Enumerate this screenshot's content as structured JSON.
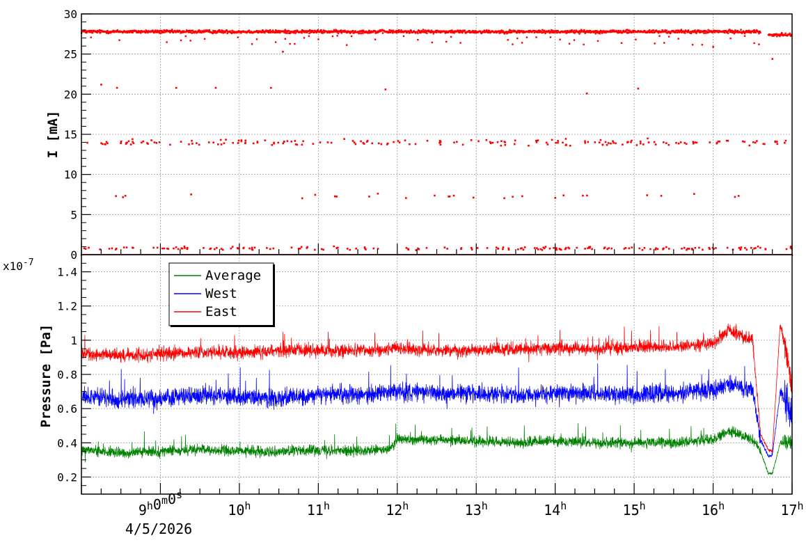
{
  "chart_data": [
    {
      "type": "scatter",
      "ylabel": "I [mA]",
      "ylim": [
        0,
        30
      ],
      "yticks": [
        "0",
        "5",
        "10",
        "15",
        "20",
        "25",
        "30"
      ],
      "grid": true,
      "marker_color": "#ff0000",
      "series": [
        {
          "bands": [
            {
              "level": 27.8,
              "spread": 0.3,
              "range": [
                8.0,
                16.6
              ]
            },
            {
              "level": 27.4,
              "spread": 0.3,
              "range": [
                16.7,
                17.0
              ]
            },
            {
              "level": 0.0,
              "spread": 0.0,
              "range": [
                8.0,
                17.0
              ]
            }
          ],
          "scattered": [
            {
              "approx_level": 14.0,
              "range": [
                8.0,
                17.0
              ]
            },
            {
              "approx_level": 0.8,
              "range": [
                8.0,
                17.0
              ]
            },
            {
              "approx_level": 7.3,
              "range": [
                8.3,
                16.5
              ]
            }
          ],
          "outliers": [
            [
              8.25,
              21.2
            ],
            [
              8.45,
              20.8
            ],
            [
              9.2,
              20.8
            ],
            [
              9.7,
              20.8
            ],
            [
              10.4,
              20.8
            ],
            [
              11.85,
              20.6
            ],
            [
              14.4,
              20.1
            ],
            [
              15.05,
              20.7
            ],
            [
              16.75,
              24.4
            ],
            [
              16.0,
              25.9
            ],
            [
              10.55,
              25.3
            ]
          ]
        }
      ]
    },
    {
      "type": "line",
      "ylabel": "Pressure [Pa]",
      "multiplier": "x10",
      "multiplier_exp": "-7",
      "ylim": [
        0.1,
        1.5
      ],
      "yticks": [
        "0.2",
        "0.4",
        "0.6",
        "0.8",
        "1",
        "1.2",
        "1.4"
      ],
      "xlim": [
        8.0,
        17.0
      ],
      "xticks": [
        {
          "x": 9,
          "h": "9",
          "m": "0",
          "s": "0"
        },
        {
          "x": 10,
          "h": "10"
        },
        {
          "x": 11,
          "h": "11"
        },
        {
          "x": 12,
          "h": "12"
        },
        {
          "x": 13,
          "h": "13"
        },
        {
          "x": 14,
          "h": "14"
        },
        {
          "x": 15,
          "h": "15"
        },
        {
          "x": 16,
          "h": "16"
        },
        {
          "x": 17,
          "h": "17"
        }
      ],
      "xtick_unit_h": "h",
      "xtick_unit_m": "m",
      "xtick_unit_s": "s",
      "date_label": "4/5/2026",
      "grid": true,
      "legend_position": "top-left",
      "series": [
        {
          "name": "Average",
          "color": "#008000",
          "x": [
            8.0,
            8.5,
            9.0,
            9.5,
            10.0,
            10.5,
            11.0,
            11.5,
            11.9,
            12.0,
            12.5,
            13.0,
            13.5,
            14.0,
            14.5,
            15.0,
            15.5,
            16.0,
            16.2,
            16.5,
            16.6,
            16.7,
            16.75,
            16.85,
            17.0
          ],
          "values": [
            0.36,
            0.34,
            0.35,
            0.36,
            0.35,
            0.35,
            0.36,
            0.35,
            0.36,
            0.42,
            0.42,
            0.41,
            0.4,
            0.41,
            0.4,
            0.4,
            0.4,
            0.42,
            0.47,
            0.42,
            0.35,
            0.22,
            0.22,
            0.4,
            0.4
          ]
        },
        {
          "name": "West",
          "color": "#0000ff",
          "x": [
            8.0,
            8.5,
            9.0,
            9.5,
            10.0,
            10.5,
            11.0,
            11.5,
            12.0,
            12.5,
            13.0,
            13.5,
            14.0,
            14.5,
            15.0,
            15.5,
            16.0,
            16.2,
            16.5,
            16.6,
            16.7,
            16.75,
            16.85,
            17.0
          ],
          "values": [
            0.68,
            0.65,
            0.66,
            0.68,
            0.67,
            0.66,
            0.68,
            0.68,
            0.7,
            0.69,
            0.69,
            0.68,
            0.69,
            0.69,
            0.68,
            0.69,
            0.71,
            0.74,
            0.71,
            0.42,
            0.32,
            0.33,
            0.7,
            0.55
          ]
        },
        {
          "name": "East",
          "color": "#ff0000",
          "x": [
            8.0,
            8.5,
            9.0,
            9.5,
            10.0,
            10.5,
            11.0,
            11.5,
            12.0,
            12.5,
            13.0,
            13.5,
            14.0,
            14.5,
            15.0,
            15.5,
            16.0,
            16.2,
            16.5,
            16.6,
            16.7,
            16.75,
            16.85,
            17.0
          ],
          "values": [
            0.92,
            0.91,
            0.92,
            0.93,
            0.93,
            0.94,
            0.94,
            0.94,
            0.95,
            0.94,
            0.94,
            0.95,
            0.95,
            0.95,
            0.96,
            0.96,
            0.98,
            1.06,
            1.0,
            0.45,
            0.36,
            0.35,
            1.1,
            0.75
          ]
        }
      ]
    }
  ]
}
